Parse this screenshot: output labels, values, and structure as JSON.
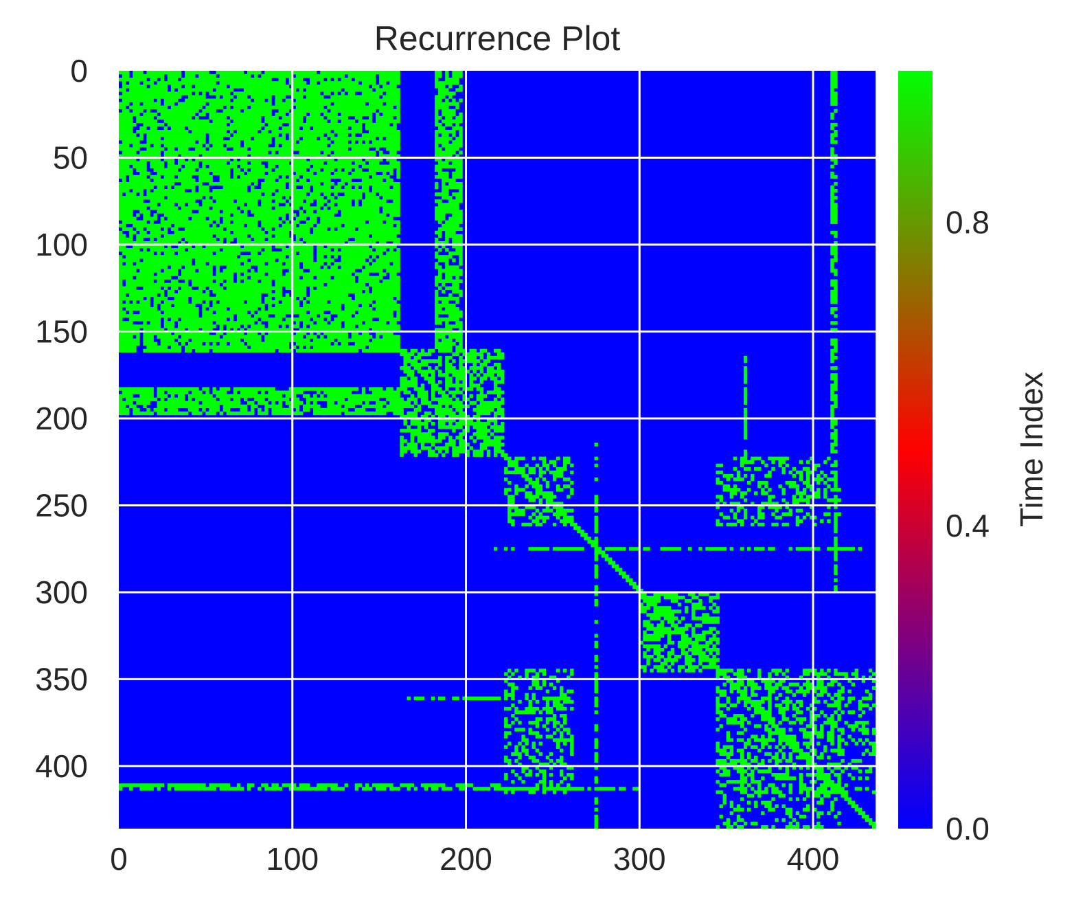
{
  "chart_data": {
    "type": "heatmap",
    "title": "Recurrence Plot",
    "xlabel": "",
    "ylabel": "",
    "n": 436,
    "xlim": [
      0,
      436
    ],
    "ylim": [
      436,
      0
    ],
    "xticks": [
      0,
      100,
      200,
      300,
      400
    ],
    "yticks": [
      0,
      50,
      100,
      150,
      200,
      250,
      300,
      350,
      400
    ],
    "grid": true,
    "colorbar": {
      "label": "Time Index",
      "range": [
        0,
        1
      ],
      "ticks": [
        0.0,
        0.4,
        0.8
      ],
      "tick_labels": [
        "0.0",
        "0.4",
        "0.8"
      ],
      "colors": [
        "#0000ff",
        "#ff0000",
        "#00ff00"
      ]
    },
    "values": "binary recurrence matrix (1 = recurrent, 0 = not)",
    "recurrent_blocks": [
      {
        "x": [
          0,
          162
        ],
        "y": [
          0,
          162
        ],
        "density": 0.85
      },
      {
        "x": [
          0,
          162
        ],
        "y": [
          183,
          198
        ],
        "density": 0.75
      },
      {
        "x": [
          183,
          198
        ],
        "y": [
          0,
          162
        ],
        "density": 0.75
      },
      {
        "x": [
          162,
          222
        ],
        "y": [
          160,
          222
        ],
        "density": 0.6
      },
      {
        "x": [
          222,
          262
        ],
        "y": [
          222,
          262
        ],
        "density": 0.45
      },
      {
        "x": [
          300,
          345
        ],
        "y": [
          300,
          345
        ],
        "density": 0.55
      },
      {
        "x": [
          345,
          415
        ],
        "y": [
          222,
          262
        ],
        "density": 0.35
      },
      {
        "x": [
          222,
          262
        ],
        "y": [
          345,
          415
        ],
        "density": 0.35
      },
      {
        "x": [
          345,
          415
        ],
        "y": [
          345,
          415
        ],
        "density": 0.45
      },
      {
        "x": [
          345,
          415
        ],
        "y": [
          415,
          436
        ],
        "density": 0.3
      },
      {
        "x": [
          415,
          436
        ],
        "y": [
          345,
          415
        ],
        "density": 0.3
      }
    ],
    "recurrent_lines": [
      {
        "orientation": "h",
        "at": 410,
        "from": 0,
        "to": 220
      },
      {
        "orientation": "v",
        "at": 410,
        "from": 0,
        "to": 220
      },
      {
        "orientation": "v",
        "at": 412,
        "from": 0,
        "to": 300
      },
      {
        "orientation": "h",
        "at": 412,
        "from": 0,
        "to": 300
      },
      {
        "orientation": "h",
        "at": 361,
        "from": 165,
        "to": 225
      },
      {
        "orientation": "v",
        "at": 361,
        "from": 165,
        "to": 225
      },
      {
        "orientation": "h",
        "at": 275,
        "from": 215,
        "to": 436
      },
      {
        "orientation": "v",
        "at": 275,
        "from": 215,
        "to": 436
      }
    ]
  }
}
